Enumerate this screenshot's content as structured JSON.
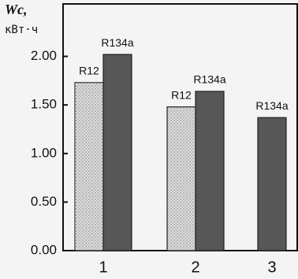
{
  "chart_data": {
    "type": "bar",
    "ylabel": "Wc,",
    "yunit": "кВт·ч",
    "categories": [
      "1",
      "2",
      "3"
    ],
    "series": [
      {
        "name": "R12",
        "color": "#dcdcdc",
        "values": [
          1.73,
          1.48,
          null
        ]
      },
      {
        "name": "R134a",
        "color": "#575757",
        "values": [
          2.02,
          1.64,
          1.37
        ]
      }
    ],
    "ylim": [
      0,
      2.54
    ],
    "yticks": [
      {
        "value": 0,
        "label": "0.00"
      },
      {
        "value": 0.5,
        "label": "0.50"
      },
      {
        "value": 1,
        "label": "1.00"
      },
      {
        "value": 1.5,
        "label": "1.50"
      },
      {
        "value": 2,
        "label": "2.00"
      }
    ],
    "grid": false
  }
}
